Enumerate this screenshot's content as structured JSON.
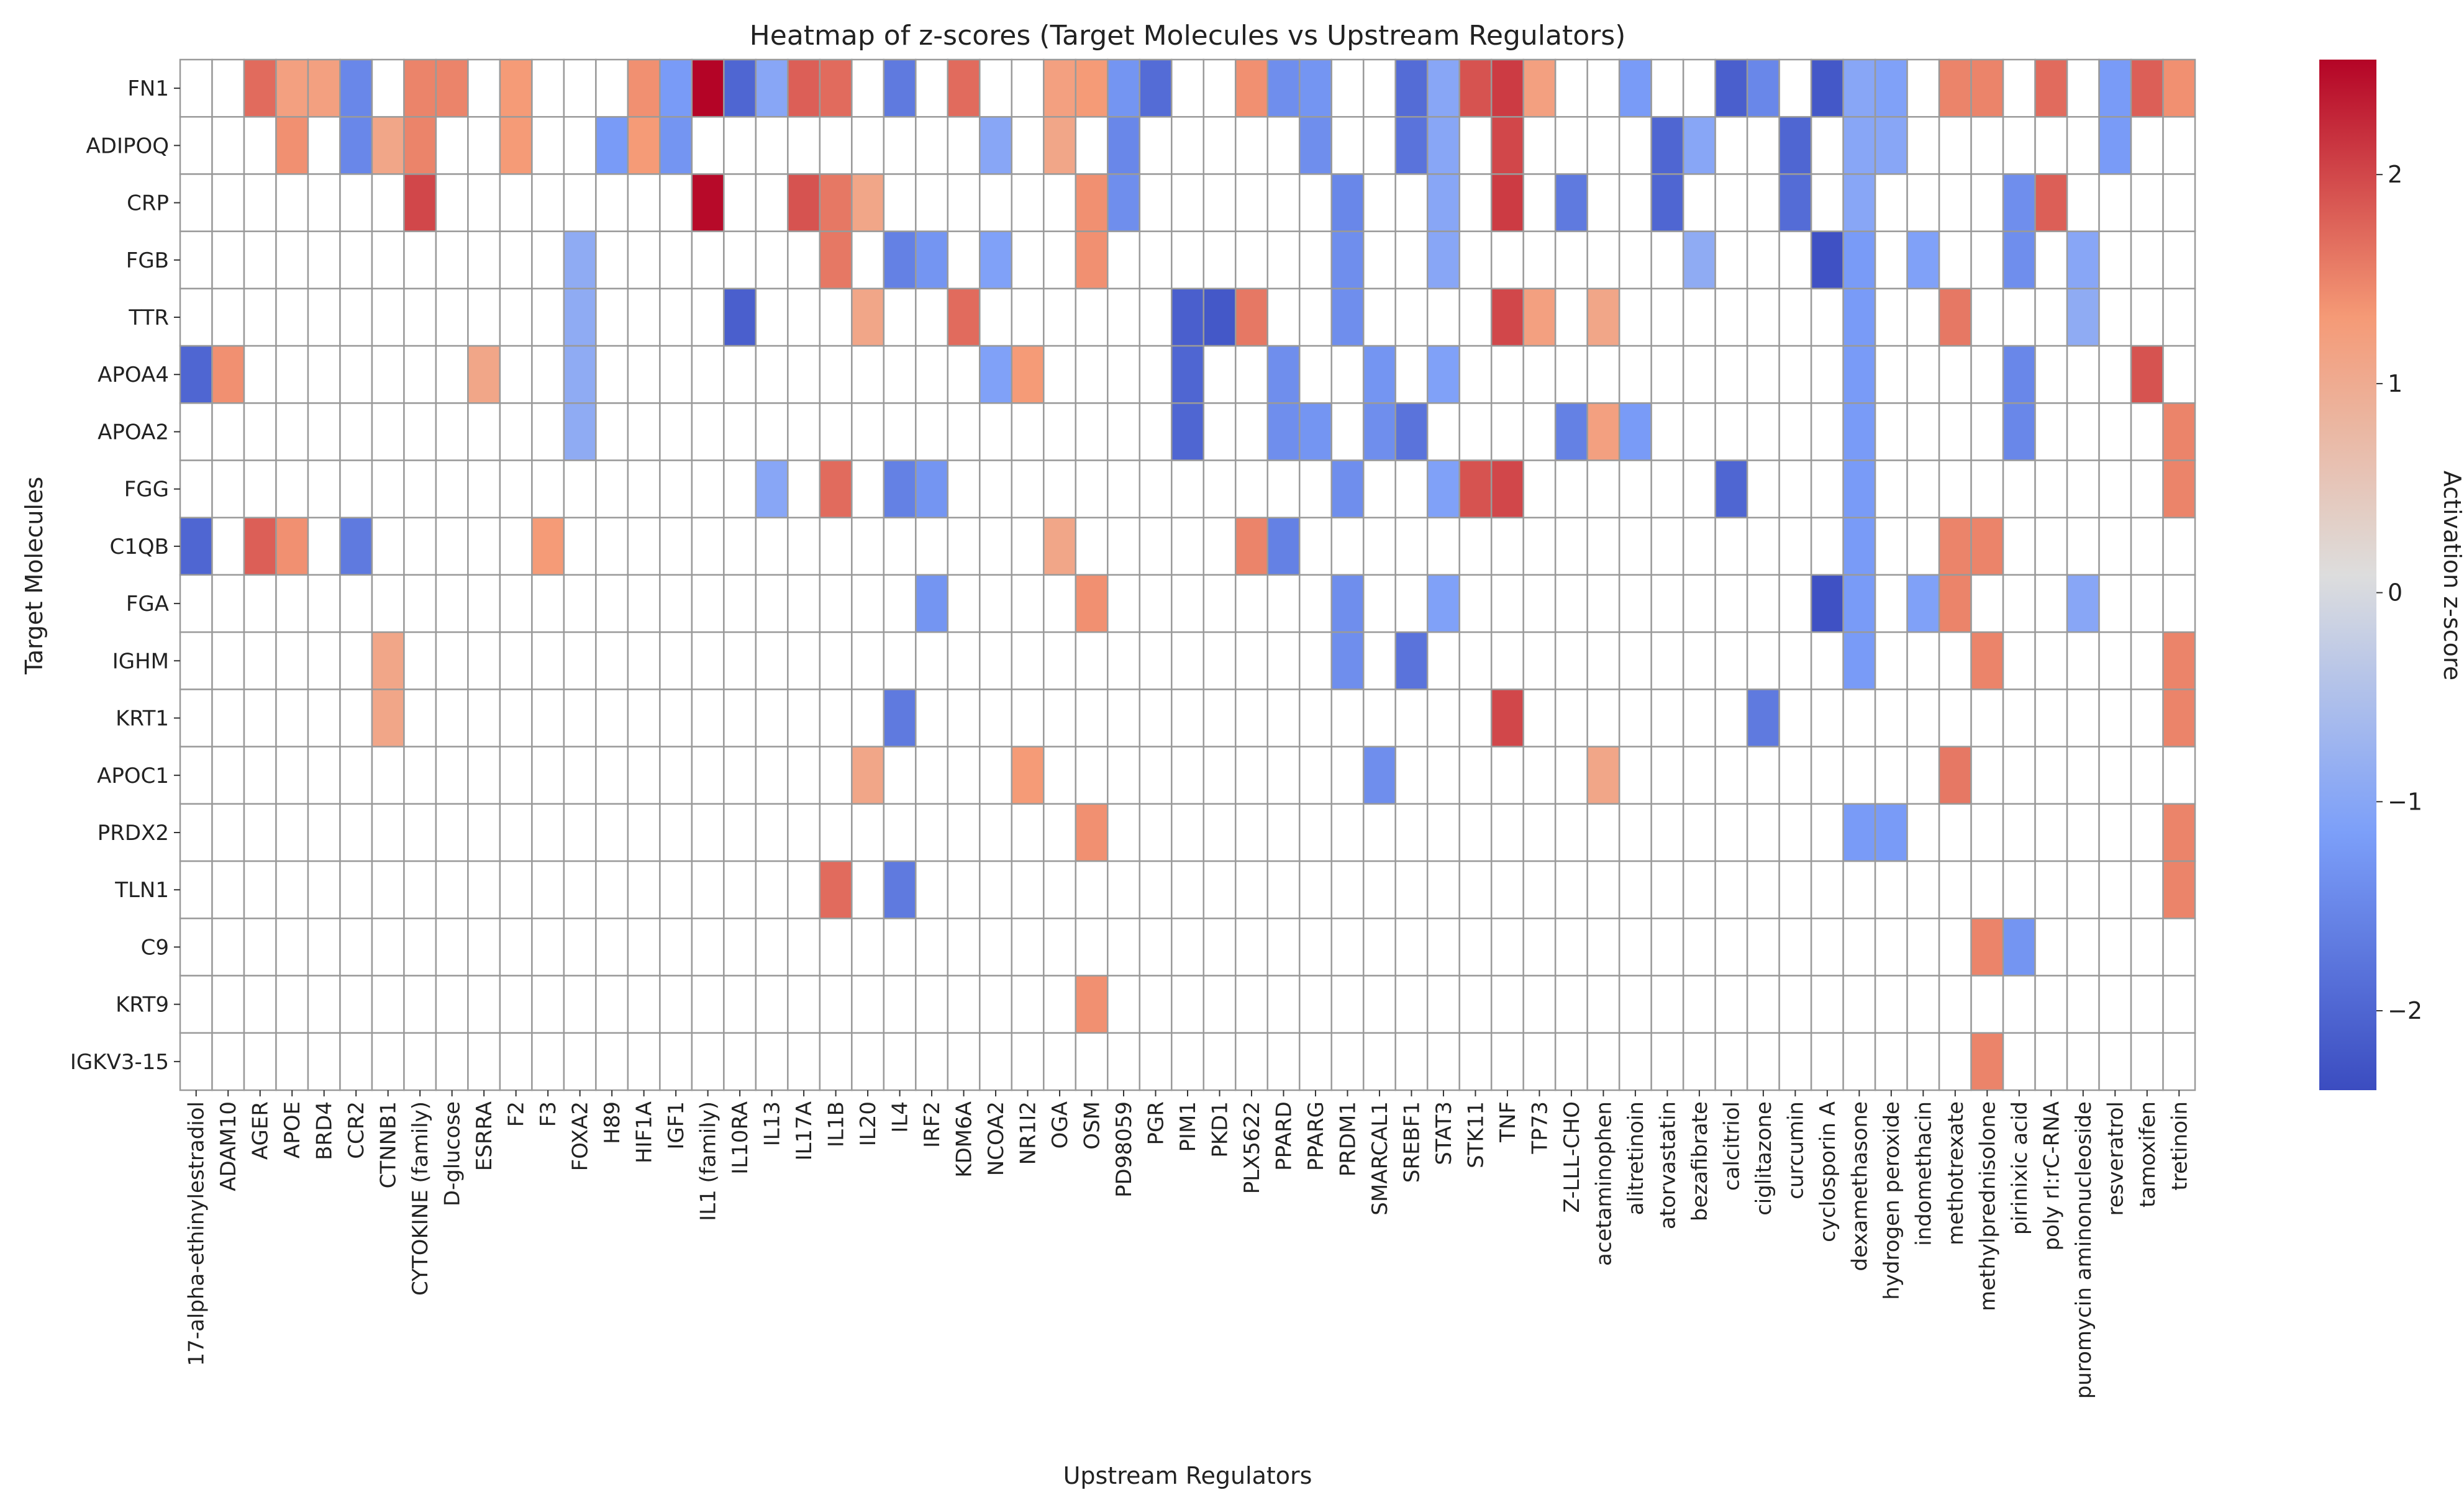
{
  "chart_data": {
    "type": "heatmap",
    "title": "Heatmap of z-scores (Target Molecules vs Upstream Regulators)",
    "xlabel": "Upstream Regulators",
    "ylabel": "Target Molecules",
    "colorbar_label": "Activation z-score",
    "colorbar_ticks": [
      2,
      1,
      0,
      -1,
      -2
    ],
    "colorbar_tick_labels": [
      "2",
      "1",
      "0",
      "−1",
      "−2"
    ],
    "vmin": -2.38,
    "vmax": 2.55,
    "colormap": "coolwarm",
    "missing_color": "#ffffff",
    "x_categories": [
      "17-alpha-ethinylestradiol",
      "ADAM10",
      "AGER",
      "APOE",
      "BRD4",
      "CCR2",
      "CTNNB1",
      "CYTOKINE (family)",
      "D-glucose",
      "ESRRA",
      "F2",
      "F3",
      "FOXA2",
      "H89",
      "HIF1A",
      "IGF1",
      "IL1 (family)",
      "IL10RA",
      "IL13",
      "IL17A",
      "IL1B",
      "IL20",
      "IL4",
      "IRF2",
      "KDM6A",
      "NCOA2",
      "NR1I2",
      "OGA",
      "OSM",
      "PD98059",
      "PGR",
      "PIM1",
      "PKD1",
      "PLX5622",
      "PPARD",
      "PPARG",
      "PRDM1",
      "SMARCAL1",
      "SREBF1",
      "STAT3",
      "STK11",
      "TNF",
      "TP73",
      "Z-LLL-CHO",
      "acetaminophen",
      "alitretinoin",
      "atorvastatin",
      "bezafibrate",
      "calcitriol",
      "ciglitazone",
      "curcumin",
      "cyclosporin A",
      "dexamethasone",
      "hydrogen peroxide",
      "indomethacin",
      "methotrexate",
      "methylprednisolone",
      "pirinixic acid",
      "poly rI:rC-RNA",
      "puromycin aminonucleoside",
      "resveratrol",
      "tamoxifen",
      "tretinoin"
    ],
    "y_categories": [
      "FN1",
      "ADIPOQ",
      "CRP",
      "FGB",
      "TTR",
      "APOA4",
      "APOA2",
      "FGG",
      "C1QB",
      "FGA",
      "IGHM",
      "KRT1",
      "APOC1",
      "PRDX2",
      "TLN1",
      "C9",
      "KRT9",
      "IGKV3-15"
    ],
    "values": [
      [
        null,
        null,
        1.7,
        1.2,
        1.2,
        -1.5,
        null,
        1.5,
        1.5,
        null,
        1.3,
        null,
        null,
        null,
        1.4,
        -1.2,
        2.6,
        -2.0,
        -1.0,
        1.8,
        1.7,
        null,
        -1.7,
        null,
        1.7,
        null,
        null,
        1.2,
        1.3,
        -1.3,
        -1.9,
        null,
        null,
        1.4,
        -1.4,
        -1.3,
        null,
        null,
        -1.9,
        -1.0,
        1.9,
        2.1,
        1.2,
        null,
        null,
        -1.2,
        null,
        null,
        -2.1,
        -1.5,
        null,
        -2.2,
        -1.0,
        -1.1,
        null,
        1.5,
        1.5,
        null,
        1.7,
        null,
        -1.2,
        1.8,
        1.4
      ],
      [
        null,
        null,
        null,
        1.4,
        null,
        -1.5,
        1.1,
        1.5,
        null,
        null,
        1.3,
        null,
        null,
        -1.2,
        1.3,
        -1.3,
        null,
        null,
        null,
        null,
        null,
        null,
        null,
        null,
        null,
        -1.0,
        null,
        1.1,
        null,
        -1.5,
        null,
        null,
        null,
        null,
        null,
        -1.4,
        null,
        null,
        -1.8,
        -1.0,
        null,
        2.0,
        null,
        null,
        null,
        null,
        -2.0,
        -1.0,
        null,
        null,
        -2.0,
        null,
        -1.0,
        -1.0,
        null,
        null,
        null,
        null,
        null,
        null,
        -1.2,
        null,
        null
      ],
      [
        null,
        null,
        null,
        null,
        null,
        null,
        null,
        2.0,
        null,
        null,
        null,
        null,
        null,
        null,
        null,
        null,
        2.5,
        null,
        null,
        1.9,
        1.6,
        1.1,
        null,
        null,
        null,
        null,
        null,
        null,
        1.4,
        -1.4,
        null,
        null,
        null,
        null,
        null,
        null,
        -1.5,
        null,
        null,
        -1.0,
        null,
        2.1,
        null,
        -1.7,
        null,
        null,
        -2.0,
        null,
        null,
        null,
        -1.9,
        null,
        -1.0,
        null,
        null,
        null,
        null,
        -1.4,
        1.8,
        null,
        null,
        null,
        null
      ],
      [
        null,
        null,
        null,
        null,
        null,
        null,
        null,
        null,
        null,
        null,
        null,
        null,
        -0.9,
        null,
        null,
        null,
        null,
        null,
        null,
        null,
        1.6,
        null,
        -1.6,
        -1.3,
        null,
        -1.1,
        null,
        null,
        1.4,
        null,
        null,
        null,
        null,
        null,
        null,
        null,
        -1.4,
        null,
        null,
        -1.0,
        null,
        null,
        null,
        null,
        null,
        null,
        null,
        -0.9,
        null,
        null,
        null,
        -2.3,
        -1.2,
        null,
        -1.1,
        null,
        null,
        -1.4,
        null,
        -1.0,
        null,
        null,
        null
      ],
      [
        null,
        null,
        null,
        null,
        null,
        null,
        null,
        null,
        null,
        null,
        null,
        null,
        -0.9,
        null,
        null,
        null,
        null,
        -2.1,
        null,
        null,
        null,
        1.1,
        null,
        null,
        1.7,
        null,
        null,
        null,
        null,
        null,
        null,
        -2.1,
        -2.2,
        1.6,
        null,
        null,
        -1.4,
        null,
        null,
        null,
        null,
        2.0,
        1.2,
        null,
        1.1,
        null,
        null,
        null,
        null,
        null,
        null,
        null,
        -1.2,
        null,
        null,
        1.6,
        null,
        null,
        null,
        -0.9,
        null,
        null,
        null
      ],
      [
        -2.0,
        1.4,
        null,
        null,
        null,
        null,
        null,
        null,
        null,
        1.1,
        null,
        null,
        -0.9,
        null,
        null,
        null,
        null,
        null,
        null,
        null,
        null,
        null,
        null,
        null,
        null,
        -1.1,
        1.3,
        null,
        null,
        null,
        null,
        -2.0,
        null,
        null,
        -1.4,
        null,
        null,
        -1.3,
        null,
        -1.1,
        null,
        null,
        null,
        null,
        null,
        null,
        null,
        null,
        null,
        null,
        null,
        null,
        -1.2,
        null,
        null,
        null,
        null,
        -1.5,
        null,
        null,
        null,
        1.9,
        null
      ],
      [
        null,
        null,
        null,
        null,
        null,
        null,
        null,
        null,
        null,
        null,
        null,
        null,
        -0.9,
        null,
        null,
        null,
        null,
        null,
        null,
        null,
        null,
        null,
        null,
        null,
        null,
        null,
        null,
        null,
        null,
        null,
        null,
        -2.0,
        null,
        null,
        -1.4,
        -1.3,
        null,
        -1.4,
        -1.8,
        null,
        null,
        null,
        null,
        -1.6,
        1.2,
        -1.2,
        null,
        null,
        null,
        null,
        null,
        null,
        -1.2,
        null,
        null,
        null,
        null,
        -1.5,
        null,
        null,
        null,
        null,
        1.5
      ],
      [
        null,
        null,
        null,
        null,
        null,
        null,
        null,
        null,
        null,
        null,
        null,
        null,
        null,
        null,
        null,
        null,
        null,
        null,
        -1.0,
        null,
        1.7,
        null,
        -1.6,
        -1.3,
        null,
        null,
        null,
        null,
        null,
        null,
        null,
        null,
        null,
        null,
        null,
        null,
        -1.4,
        null,
        null,
        -1.1,
        1.9,
        2.0,
        null,
        null,
        null,
        null,
        null,
        null,
        -2.0,
        null,
        null,
        null,
        -1.2,
        null,
        null,
        null,
        null,
        null,
        null,
        null,
        null,
        null,
        1.5
      ],
      [
        -2.0,
        null,
        1.8,
        1.4,
        null,
        -1.7,
        null,
        null,
        null,
        null,
        null,
        1.3,
        null,
        null,
        null,
        null,
        null,
        null,
        null,
        null,
        null,
        null,
        null,
        null,
        null,
        null,
        null,
        1.1,
        null,
        null,
        null,
        null,
        null,
        1.5,
        -1.6,
        null,
        null,
        null,
        null,
        null,
        null,
        null,
        null,
        null,
        null,
        null,
        null,
        null,
        null,
        null,
        null,
        null,
        -1.2,
        null,
        null,
        1.5,
        1.5,
        null,
        null,
        null,
        null,
        null,
        null
      ],
      [
        null,
        null,
        null,
        null,
        null,
        null,
        null,
        null,
        null,
        null,
        null,
        null,
        null,
        null,
        null,
        null,
        null,
        null,
        null,
        null,
        null,
        null,
        null,
        -1.3,
        null,
        null,
        null,
        null,
        1.4,
        null,
        null,
        null,
        null,
        null,
        null,
        null,
        -1.4,
        null,
        null,
        -1.1,
        null,
        null,
        null,
        null,
        null,
        null,
        null,
        null,
        null,
        null,
        null,
        -2.3,
        -1.2,
        null,
        -1.1,
        1.5,
        null,
        null,
        null,
        -1.0,
        null,
        null,
        null
      ],
      [
        null,
        null,
        null,
        null,
        null,
        null,
        1.1,
        null,
        null,
        null,
        null,
        null,
        null,
        null,
        null,
        null,
        null,
        null,
        null,
        null,
        null,
        null,
        null,
        null,
        null,
        null,
        null,
        null,
        null,
        null,
        null,
        null,
        null,
        null,
        null,
        null,
        -1.4,
        null,
        -1.8,
        null,
        null,
        null,
        null,
        null,
        null,
        null,
        null,
        null,
        null,
        null,
        null,
        null,
        -1.2,
        null,
        null,
        null,
        1.5,
        null,
        null,
        null,
        null,
        null,
        1.5
      ],
      [
        null,
        null,
        null,
        null,
        null,
        null,
        1.1,
        null,
        null,
        null,
        null,
        null,
        null,
        null,
        null,
        null,
        null,
        null,
        null,
        null,
        null,
        null,
        -1.7,
        null,
        null,
        null,
        null,
        null,
        null,
        null,
        null,
        null,
        null,
        null,
        null,
        null,
        null,
        null,
        null,
        null,
        null,
        2.0,
        null,
        null,
        null,
        null,
        null,
        null,
        null,
        -1.7,
        null,
        null,
        null,
        null,
        null,
        null,
        null,
        null,
        null,
        null,
        null,
        null,
        1.5
      ],
      [
        null,
        null,
        null,
        null,
        null,
        null,
        null,
        null,
        null,
        null,
        null,
        null,
        null,
        null,
        null,
        null,
        null,
        null,
        null,
        null,
        null,
        1.1,
        null,
        null,
        null,
        null,
        1.3,
        null,
        null,
        null,
        null,
        null,
        null,
        null,
        null,
        null,
        null,
        -1.4,
        null,
        null,
        null,
        null,
        null,
        null,
        1.1,
        null,
        null,
        null,
        null,
        null,
        null,
        null,
        null,
        null,
        null,
        1.6,
        null,
        null,
        null,
        null,
        null,
        null,
        null
      ],
      [
        null,
        null,
        null,
        null,
        null,
        null,
        null,
        null,
        null,
        null,
        null,
        null,
        null,
        null,
        null,
        null,
        null,
        null,
        null,
        null,
        null,
        null,
        null,
        null,
        null,
        null,
        null,
        null,
        1.4,
        null,
        null,
        null,
        null,
        null,
        null,
        null,
        null,
        null,
        null,
        null,
        null,
        null,
        null,
        null,
        null,
        null,
        null,
        null,
        null,
        null,
        null,
        null,
        -1.2,
        -1.2,
        null,
        null,
        null,
        null,
        null,
        null,
        null,
        null,
        1.5
      ],
      [
        null,
        null,
        null,
        null,
        null,
        null,
        null,
        null,
        null,
        null,
        null,
        null,
        null,
        null,
        null,
        null,
        null,
        null,
        null,
        null,
        1.7,
        null,
        -1.7,
        null,
        null,
        null,
        null,
        null,
        null,
        null,
        null,
        null,
        null,
        null,
        null,
        null,
        null,
        null,
        null,
        null,
        null,
        null,
        null,
        null,
        null,
        null,
        null,
        null,
        null,
        null,
        null,
        null,
        null,
        null,
        null,
        null,
        null,
        null,
        null,
        null,
        null,
        null,
        1.5
      ],
      [
        null,
        null,
        null,
        null,
        null,
        null,
        null,
        null,
        null,
        null,
        null,
        null,
        null,
        null,
        null,
        null,
        null,
        null,
        null,
        null,
        null,
        null,
        null,
        null,
        null,
        null,
        null,
        null,
        null,
        null,
        null,
        null,
        null,
        null,
        null,
        null,
        null,
        null,
        null,
        null,
        null,
        null,
        null,
        null,
        null,
        null,
        null,
        null,
        null,
        null,
        null,
        null,
        null,
        null,
        null,
        null,
        1.5,
        -1.3,
        null,
        null,
        null,
        null,
        null
      ],
      [
        null,
        null,
        null,
        null,
        null,
        null,
        null,
        null,
        null,
        null,
        null,
        null,
        null,
        null,
        null,
        null,
        null,
        null,
        null,
        null,
        null,
        null,
        null,
        null,
        null,
        null,
        null,
        null,
        1.4,
        null,
        null,
        null,
        null,
        null,
        null,
        null,
        null,
        null,
        null,
        null,
        null,
        null,
        null,
        null,
        null,
        null,
        null,
        null,
        null,
        null,
        null,
        null,
        null,
        null,
        null,
        null,
        null,
        null,
        null,
        null,
        null,
        null,
        null
      ],
      [
        null,
        null,
        null,
        null,
        null,
        null,
        null,
        null,
        null,
        null,
        null,
        null,
        null,
        null,
        null,
        null,
        null,
        null,
        null,
        null,
        null,
        null,
        null,
        null,
        null,
        null,
        null,
        null,
        null,
        null,
        null,
        null,
        null,
        null,
        null,
        null,
        null,
        null,
        null,
        null,
        null,
        null,
        null,
        null,
        null,
        null,
        null,
        null,
        null,
        null,
        null,
        null,
        null,
        null,
        null,
        null,
        1.5,
        null,
        null,
        null,
        null,
        null,
        null
      ]
    ]
  }
}
